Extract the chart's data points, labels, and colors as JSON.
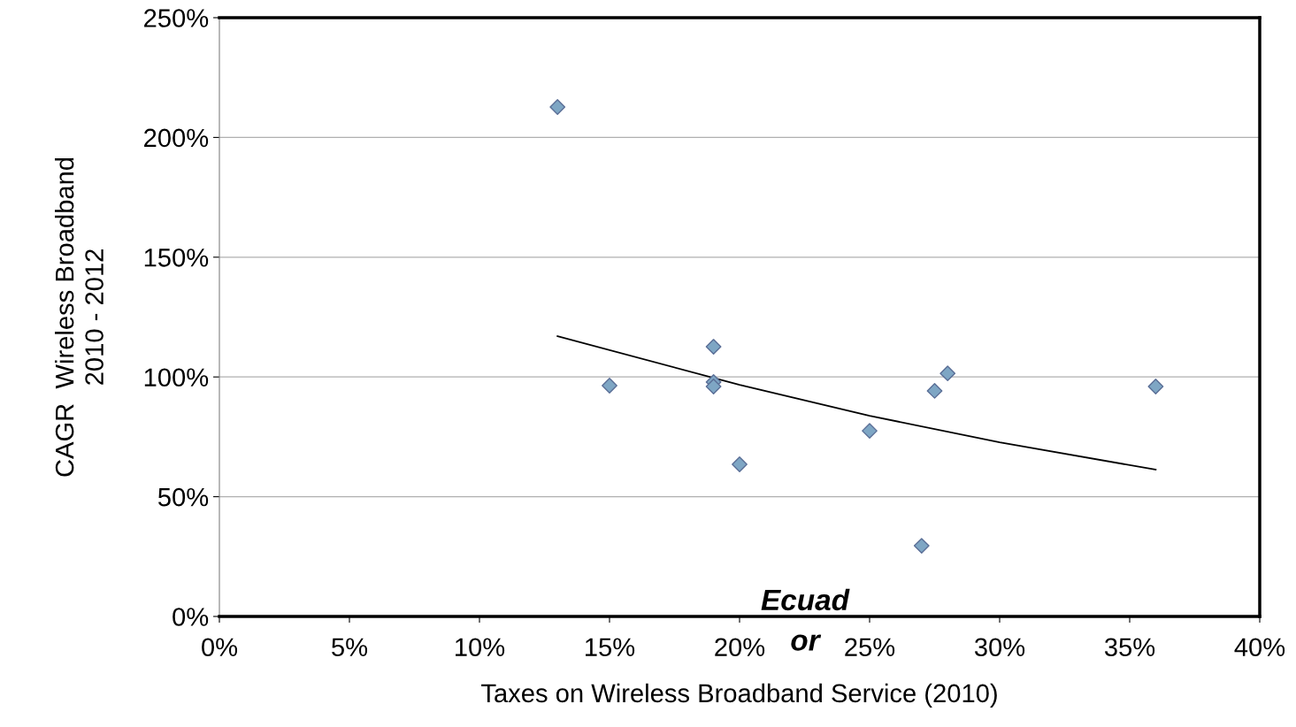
{
  "chart_data": {
    "type": "scatter",
    "xlabel": "Taxes on Wireless Broadband Service (2010)",
    "ylabel": "CAGR  Wireless Broadband\n2010 - 2012",
    "x": [
      13,
      15,
      19,
      19,
      19,
      20,
      25,
      27.5,
      28,
      27,
      36
    ],
    "series": [
      {
        "type": "scatter",
        "color": "#7ea6c4",
        "marker": "diamond",
        "values": [
          212.7,
          96.4,
          112.6,
          97.9,
          96.0,
          63.5,
          77.5,
          94.2,
          101.5,
          29.5,
          96.0
        ]
      },
      {
        "type": "line",
        "color": "#000000",
        "marker": "none",
        "line_style": "solid",
        "x": [
          13,
          20,
          25,
          30,
          36
        ],
        "values": [
          117,
          96.7,
          83.8,
          72.7,
          61.3
        ]
      }
    ],
    "xlim": [
      0,
      40
    ],
    "xticks": [
      {
        "value": 0,
        "label": "0%"
      },
      {
        "value": 5,
        "label": "5%"
      },
      {
        "value": 10,
        "label": "10%"
      },
      {
        "value": 15,
        "label": "15%"
      },
      {
        "value": 20,
        "label": "20%"
      },
      {
        "value": 25,
        "label": "25%"
      },
      {
        "value": 30,
        "label": "30%"
      },
      {
        "value": 35,
        "label": "35%"
      },
      {
        "value": 40,
        "label": "40%"
      }
    ],
    "ylim": [
      0,
      250
    ],
    "yticks": [
      {
        "value": 0,
        "label": "0%"
      },
      {
        "value": 50,
        "label": "50%"
      },
      {
        "value": 100,
        "label": "100%"
      },
      {
        "value": 150,
        "label": "150%"
      },
      {
        "value": 200,
        "label": "200%"
      },
      {
        "value": 250,
        "label": "250%"
      }
    ],
    "grid": "y",
    "legend": false,
    "annotations": [
      "Ecuad\nor"
    ]
  }
}
